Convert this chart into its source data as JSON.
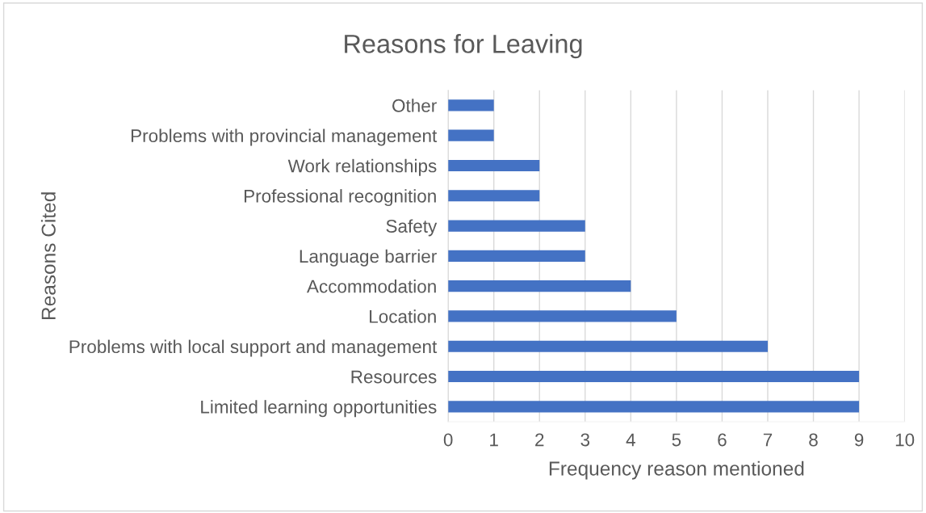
{
  "chart_data": {
    "type": "bar",
    "orientation": "horizontal",
    "title": "Reasons for Leaving",
    "xlabel": "Frequency reason mentioned",
    "ylabel": "Reasons Cited",
    "categories": [
      "Other",
      "Problems with provincial management",
      "Work relationships",
      "Professional recognition",
      "Safety",
      "Language barrier",
      "Accommodation",
      "Location",
      "Problems with local support and management",
      "Resources",
      "Limited learning opportunities"
    ],
    "values": [
      1,
      1,
      2,
      2,
      3,
      3,
      4,
      5,
      7,
      9,
      9
    ],
    "color": "#4472c4",
    "xlim": [
      0,
      10
    ],
    "xticks": [
      0,
      1,
      2,
      3,
      4,
      5,
      6,
      7,
      8,
      9,
      10
    ],
    "grid": "x",
    "legend": false
  }
}
